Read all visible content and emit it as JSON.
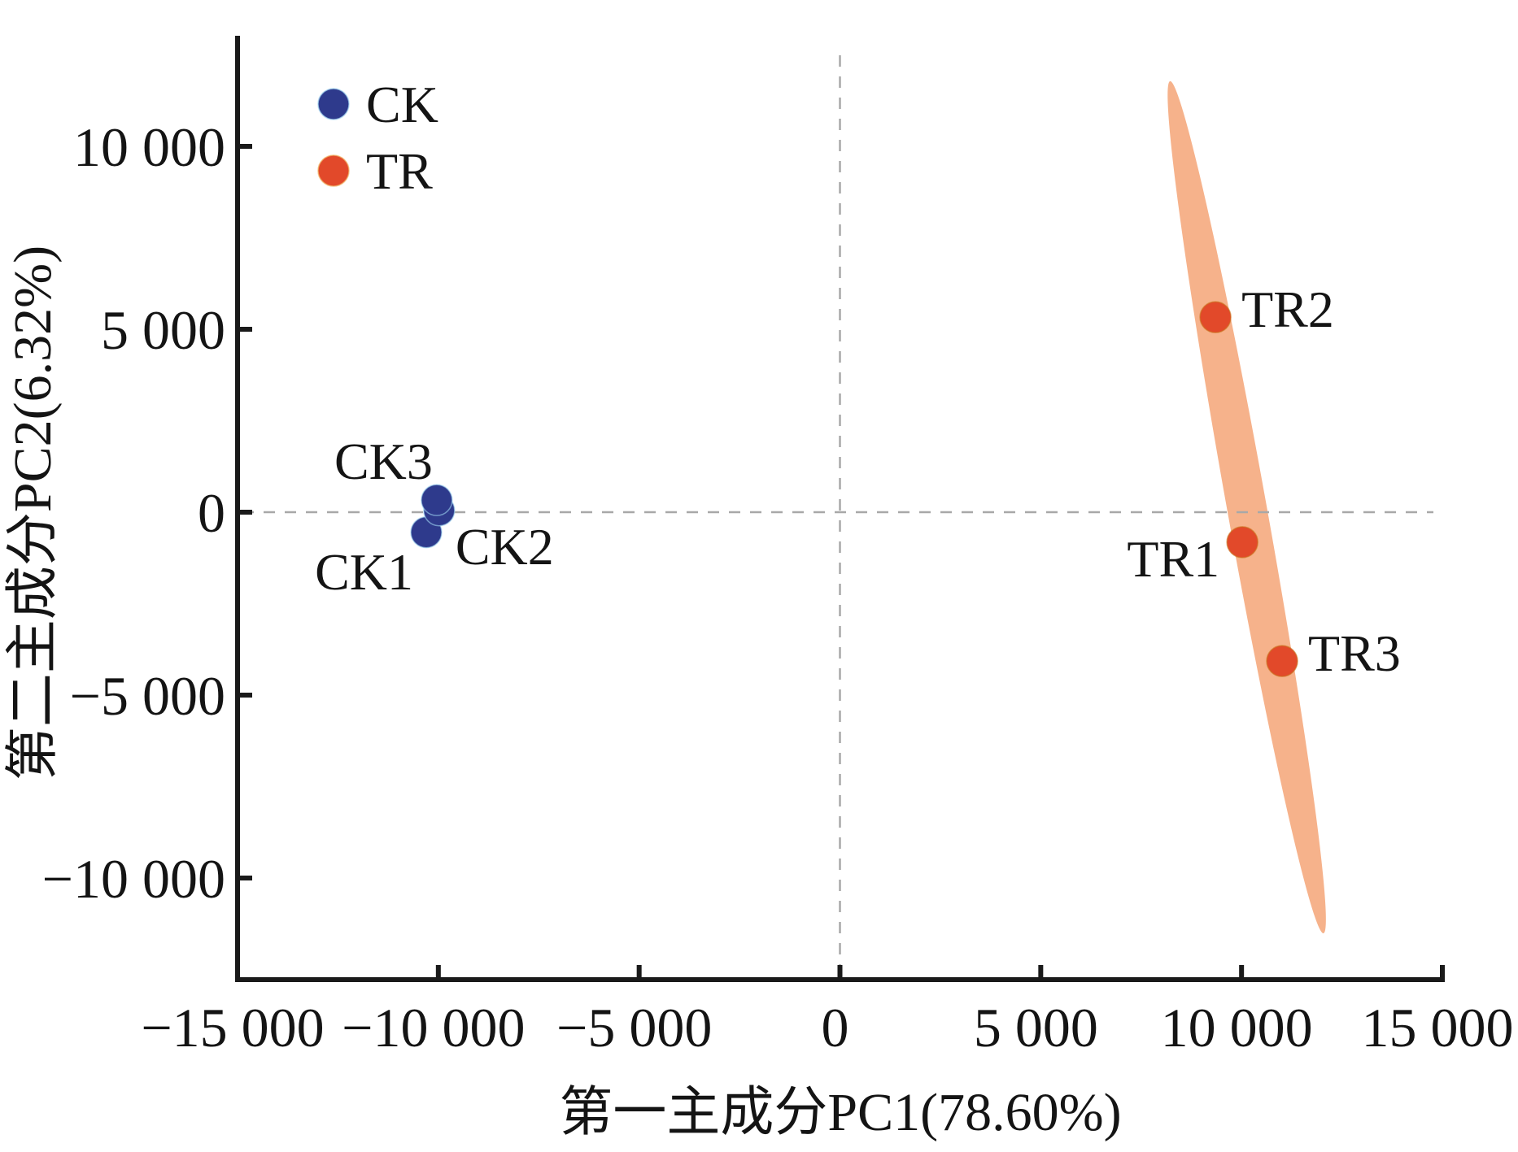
{
  "chart_data": {
    "type": "scatter",
    "title": "",
    "xlabel": "第一主成分PC1(78.60%)",
    "ylabel": "第二主成分PC2(6.32%)",
    "xlim": [
      -15000,
      15000
    ],
    "ylim": [
      -12800,
      13000
    ],
    "x_ticks": [
      -15000,
      -10000,
      -5000,
      0,
      5000,
      10000,
      15000
    ],
    "x_tick_labels": [
      "−15 000",
      "−10 000",
      "−5 000",
      "0",
      "5 000",
      "10 000",
      "15 000"
    ],
    "y_ticks": [
      -10000,
      -5000,
      0,
      5000,
      10000
    ],
    "y_tick_labels": [
      "−10 000",
      "−5 000",
      "0",
      "5 000",
      "10 000"
    ],
    "grid": false,
    "reference_lines": {
      "x": 0,
      "y": 0,
      "style": "dashed"
    },
    "legend": {
      "placement": "top-left",
      "entries": [
        {
          "label": "CK",
          "color": "#2E3A8C"
        },
        {
          "label": "TR",
          "color": "#E2492A"
        }
      ]
    },
    "series": [
      {
        "name": "CK",
        "color": "#2E3A8C",
        "points": [
          {
            "label": "CK1",
            "x": -10300,
            "y": -550,
            "label_anchor": "below-left"
          },
          {
            "label": "CK2",
            "x": -9980,
            "y": 50,
            "label_anchor": "below-right"
          },
          {
            "label": "CK3",
            "x": -10040,
            "y": 330,
            "label_anchor": "above-left"
          }
        ]
      },
      {
        "name": "TR",
        "color": "#E2492A",
        "points": [
          {
            "label": "TR1",
            "x": 10020,
            "y": -820,
            "label_anchor": "left"
          },
          {
            "label": "TR2",
            "x": 9350,
            "y": 5330,
            "label_anchor": "right"
          },
          {
            "label": "TR3",
            "x": 11010,
            "y": -4070,
            "label_anchor": "right"
          }
        ]
      }
    ],
    "confidence_ellipses": [
      {
        "group": "TR",
        "color": "#F5AE85",
        "center": [
          10130,
          135
        ],
        "major_axis_end_top": [
          8220,
          11780
        ],
        "major_axis_end_bottom": [
          12040,
          -11510
        ],
        "minor_width_data_x": 1000
      }
    ]
  }
}
